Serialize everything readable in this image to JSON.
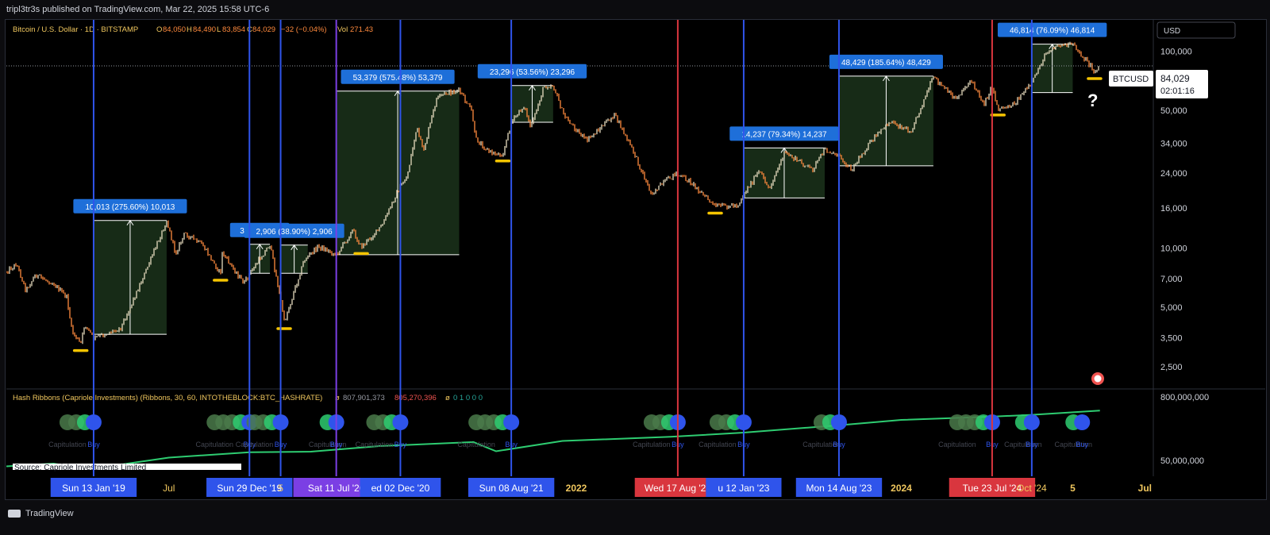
{
  "header": {
    "publisher": "tripl3tr3s published on TradingView.com, Mar 22, 2025 15:58 UTC-6"
  },
  "legend": {
    "symbol": "Bitcoin / U.S. Dollar · 1D · BITSTAMP",
    "o_label": "O",
    "o_value": "84,050",
    "h_label": "H",
    "h_value": "84,490",
    "l_label": "L",
    "l_value": "83,854",
    "c_label": "C",
    "c_value": "84,029",
    "change": "−32 (−0.04%)",
    "vol_label": "Vol",
    "vol_value": "271.43"
  },
  "indicator": {
    "name": "Hash Ribbons (Capriole Investments) (Ribbons, 30, 60, INTOTHEBLOCK:BTC_HASHRATE)",
    "v1": "807,901,373",
    "v2": "805,270,396",
    "v3": "0 1 0 0 0",
    "source": "Source: Capriole Investments Limited",
    "axis_top": "800,000,000",
    "axis_bottom": "50,000,000",
    "capitulation_label": "Capitulation",
    "buy_label": "Buy"
  },
  "currency": "USD",
  "price_tag": {
    "symbol": "BTCUSD",
    "price": "84,029",
    "timer": "02:01:16"
  },
  "question_mark": "?",
  "footer": {
    "brand": "TradingView"
  },
  "colors": {
    "bull_candle": "#e8dcc0",
    "bear_candle": "#ff8a3d",
    "box_fill": "#1f3a1f",
    "buy_line": "#2f54eb",
    "sell_line": "#d9363e",
    "purple_line": "#7b3fe4",
    "label_blue": "#1e6fd9",
    "hash_green": "#2ecc71",
    "hash_red": "#d9363e",
    "highlight": "#f5c400"
  },
  "chart_data": {
    "type": "line",
    "title": "Bitcoin / U.S. Dollar · 1D · BITSTAMP",
    "y_scale": "log",
    "ylim": [
      2000,
      140000
    ],
    "y_ticks": [
      "100,000",
      "50,000",
      "34,000",
      "24,000",
      "16,000",
      "10,000",
      "7,000",
      "5,000",
      "3,500",
      "2,500"
    ],
    "y_tick_values": [
      100000,
      50000,
      34000,
      24000,
      16000,
      10000,
      7000,
      5000,
      3500,
      2500
    ],
    "xlim": [
      "2018-07-01",
      "2025-07-20"
    ],
    "x_axis_labels": [
      {
        "date": "2019-01-13",
        "text": "Sun 13 Jan '19",
        "style": "buy"
      },
      {
        "date": "2019-07-01",
        "text": "Jul",
        "style": "plain"
      },
      {
        "date": "2019-12-29",
        "text": "Sun 29 Dec '19",
        "style": "buy"
      },
      {
        "date": "2020-03-08",
        "text": "5",
        "style": "plain"
      },
      {
        "date": "2020-07-11",
        "text": "Sat 11 Jul '20",
        "style": "purple"
      },
      {
        "date": "2020-12-02",
        "text": "ed 02 Dec '20",
        "style": "buy"
      },
      {
        "date": "2021-08-08",
        "text": "Sun 08 Aug '21",
        "style": "buy"
      },
      {
        "date": "2022-01-01",
        "text": "2022",
        "style": "year"
      },
      {
        "date": "2022-08-17",
        "text": "Wed 17 Aug '22",
        "style": "sell"
      },
      {
        "date": "2023-01-12",
        "text": "u 12 Jan '23",
        "style": "buy"
      },
      {
        "date": "2023-08-14",
        "text": "Mon 14 Aug '23",
        "style": "buy"
      },
      {
        "date": "2024-01-01",
        "text": "2024",
        "style": "year"
      },
      {
        "date": "2024-07-23",
        "text": "Tue 23 Jul '24",
        "style": "sell"
      },
      {
        "date": "2024-10-20",
        "text": "Oct '24",
        "style": "plain"
      },
      {
        "date": "2025-01-20",
        "text": "5",
        "style": "year"
      },
      {
        "date": "2025-07-01",
        "text": "Jul",
        "style": "year"
      }
    ],
    "vertical_lines": [
      {
        "date": "2019-01-13",
        "kind": "buy"
      },
      {
        "date": "2019-12-29",
        "kind": "buy"
      },
      {
        "date": "2020-03-08",
        "kind": "buy"
      },
      {
        "date": "2020-07-11",
        "kind": "purple"
      },
      {
        "date": "2020-12-02",
        "kind": "buy"
      },
      {
        "date": "2021-08-08",
        "kind": "buy"
      },
      {
        "date": "2022-08-17",
        "kind": "sell"
      },
      {
        "date": "2023-01-12",
        "kind": "buy"
      },
      {
        "date": "2023-08-14",
        "kind": "buy"
      },
      {
        "date": "2024-07-23",
        "kind": "sell"
      },
      {
        "date": "2024-10-20",
        "kind": "buy"
      }
    ],
    "measure_boxes": [
      {
        "start": "2019-01-13",
        "end": "2019-06-26",
        "low": 3650,
        "high": 13800,
        "label": "10,013 (275.60%) 10,013"
      },
      {
        "start": "2019-12-29",
        "end": "2020-02-13",
        "low": 7450,
        "high": 10450,
        "label": "3,011 (40.3"
      },
      {
        "start": "2020-03-08",
        "end": "2020-05-08",
        "low": 7450,
        "high": 10350,
        "label": "2,906 (38.90%) 2,906"
      },
      {
        "start": "2020-07-11",
        "end": "2021-04-13",
        "low": 9250,
        "high": 62600,
        "label": "53,379 (575.48%) 53,379"
      },
      {
        "start": "2021-08-08",
        "end": "2021-11-10",
        "low": 43500,
        "high": 66800,
        "label": "23,296 (53.56%) 23,296"
      },
      {
        "start": "2023-01-12",
        "end": "2023-07-13",
        "low": 17950,
        "high": 32200,
        "label": "14,237 (79.34%) 14,237"
      },
      {
        "start": "2023-08-14",
        "end": "2024-03-13",
        "low": 26150,
        "high": 74600,
        "label": "48,429 (185.64%) 48,429"
      },
      {
        "start": "2024-10-20",
        "end": "2025-01-20",
        "low": 61500,
        "high": 108300,
        "label": "46,814 (76.09%) 46,814"
      }
    ],
    "price_series": {
      "name": "BTCUSD",
      "points": [
        [
          "2018-07-01",
          7600
        ],
        [
          "2018-07-24",
          8300
        ],
        [
          "2018-08-14",
          6100
        ],
        [
          "2018-09-04",
          7300
        ],
        [
          "2018-10-15",
          6600
        ],
        [
          "2018-11-14",
          5600
        ],
        [
          "2018-11-25",
          3800
        ],
        [
          "2018-12-15",
          3250
        ],
        [
          "2018-12-24",
          4100
        ],
        [
          "2019-01-13",
          3500
        ],
        [
          "2019-02-08",
          3650
        ],
        [
          "2019-03-15",
          3950
        ],
        [
          "2019-04-03",
          4900
        ],
        [
          "2019-05-14",
          8000
        ],
        [
          "2019-06-26",
          13800
        ],
        [
          "2019-07-16",
          9400
        ],
        [
          "2019-08-06",
          11900
        ],
        [
          "2019-09-15",
          10300
        ],
        [
          "2019-10-25",
          7400
        ],
        [
          "2019-10-28",
          9500
        ],
        [
          "2019-12-17",
          6600
        ],
        [
          "2019-12-29",
          7400
        ],
        [
          "2020-02-13",
          10450
        ],
        [
          "2020-03-12",
          4900
        ],
        [
          "2020-03-16",
          4200
        ],
        [
          "2020-04-30",
          8700
        ],
        [
          "2020-06-01",
          10200
        ],
        [
          "2020-07-11",
          9250
        ],
        [
          "2020-08-17",
          12300
        ],
        [
          "2020-09-05",
          10100
        ],
        [
          "2020-10-21",
          12900
        ],
        [
          "2020-11-25",
          19300
        ],
        [
          "2020-12-17",
          23100
        ],
        [
          "2021-01-08",
          41000
        ],
        [
          "2021-01-22",
          30800
        ],
        [
          "2021-02-21",
          57000
        ],
        [
          "2021-03-13",
          61000
        ],
        [
          "2021-04-13",
          63000
        ],
        [
          "2021-05-12",
          49000
        ],
        [
          "2021-05-19",
          36000
        ],
        [
          "2021-06-22",
          30500
        ],
        [
          "2021-07-20",
          29800
        ],
        [
          "2021-08-08",
          43500
        ],
        [
          "2021-09-06",
          52700
        ],
        [
          "2021-09-21",
          40500
        ],
        [
          "2021-10-20",
          66000
        ],
        [
          "2021-11-10",
          67000
        ],
        [
          "2021-12-04",
          47000
        ],
        [
          "2022-01-24",
          35000
        ],
        [
          "2022-03-28",
          47500
        ],
        [
          "2022-05-09",
          31000
        ],
        [
          "2022-06-18",
          18900
        ],
        [
          "2022-08-15",
          24300
        ],
        [
          "2022-08-17",
          23300
        ],
        [
          "2022-09-12",
          22000
        ],
        [
          "2022-11-09",
          16200
        ],
        [
          "2022-12-30",
          16500
        ],
        [
          "2023-01-12",
          18800
        ],
        [
          "2023-02-16",
          24500
        ],
        [
          "2023-03-10",
          20000
        ],
        [
          "2023-04-14",
          30500
        ],
        [
          "2023-06-15",
          25000
        ],
        [
          "2023-07-13",
          31500
        ],
        [
          "2023-08-14",
          29400
        ],
        [
          "2023-09-11",
          25100
        ],
        [
          "2023-10-24",
          34500
        ],
        [
          "2023-12-08",
          44000
        ],
        [
          "2024-01-22",
          39000
        ],
        [
          "2024-03-13",
          73500
        ],
        [
          "2024-05-01",
          57000
        ],
        [
          "2024-06-05",
          71000
        ],
        [
          "2024-07-05",
          54000
        ],
        [
          "2024-07-23",
          66000
        ],
        [
          "2024-08-05",
          51000
        ],
        [
          "2024-09-06",
          53000
        ],
        [
          "2024-10-20",
          68500
        ],
        [
          "2024-11-22",
          99000
        ],
        [
          "2024-12-17",
          107000
        ],
        [
          "2025-01-20",
          108000
        ],
        [
          "2025-02-25",
          86000
        ],
        [
          "2025-03-10",
          78000
        ],
        [
          "2025-03-22",
          84029
        ]
      ]
    },
    "highlight_lows": [
      {
        "date": "2018-12-15",
        "value": 3250
      },
      {
        "date": "2019-10-25",
        "value": 7400
      },
      {
        "date": "2020-03-16",
        "value": 4200
      },
      {
        "date": "2020-09-05",
        "value": 10100
      },
      {
        "date": "2021-07-20",
        "value": 29800
      },
      {
        "date": "2022-11-09",
        "value": 16200
      },
      {
        "date": "2024-08-05",
        "value": 51000
      },
      {
        "date": "2025-03-10",
        "value": 78000
      }
    ],
    "current_price": 84029,
    "hash_ribbons": {
      "y_scale": "log",
      "ylim": [
        30000000,
        1000000000
      ],
      "series": [
        {
          "role": "ribbon",
          "points": [
            [
              "2018-07-01",
              46000000
            ],
            [
              "2018-10-15",
              53000000
            ],
            [
              "2018-12-15",
              42000000
            ],
            [
              "2019-02-15",
              46000000
            ],
            [
              "2019-07-01",
              72000000
            ],
            [
              "2019-12-29",
              95000000
            ],
            [
              "2020-05-15",
              98000000
            ],
            [
              "2020-10-15",
              130000000
            ],
            [
              "2021-05-15",
              160000000
            ],
            [
              "2021-07-05",
              100000000
            ],
            [
              "2021-12-01",
              170000000
            ],
            [
              "2022-08-01",
              210000000
            ],
            [
              "2023-01-12",
              260000000
            ],
            [
              "2023-08-14",
              380000000
            ],
            [
              "2024-01-01",
              500000000
            ],
            [
              "2024-07-23",
              590000000
            ],
            [
              "2024-10-20",
              650000000
            ],
            [
              "2025-03-22",
              807901373
            ]
          ]
        }
      ],
      "signal_groups": [
        {
          "date": "2019-01-13",
          "grey": 3
        },
        {
          "date": "2019-12-29",
          "grey": 4
        },
        {
          "date": "2020-03-08",
          "grey": 3
        },
        {
          "date": "2020-07-11",
          "grey": 1
        },
        {
          "date": "2020-12-02",
          "grey": 3
        },
        {
          "date": "2021-08-08",
          "grey": 4
        },
        {
          "date": "2022-08-17",
          "grey": 3
        },
        {
          "date": "2023-01-12",
          "grey": 3
        },
        {
          "date": "2023-08-14",
          "grey": 2
        },
        {
          "date": "2024-07-23",
          "grey": 4
        },
        {
          "date": "2024-10-20",
          "grey": 1
        },
        {
          "date": "2025-02-10",
          "grey": 1
        }
      ]
    }
  }
}
